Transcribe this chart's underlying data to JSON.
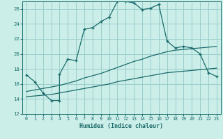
{
  "xlabel": "Humidex (Indice chaleur)",
  "background_color": "#cceee8",
  "grid_color": "#99cccc",
  "line_color": "#1a6b6b",
  "xlim": [
    -0.5,
    23.5
  ],
  "ylim": [
    12,
    27
  ],
  "xticks": [
    0,
    1,
    2,
    3,
    4,
    5,
    6,
    7,
    8,
    9,
    10,
    11,
    12,
    13,
    14,
    15,
    16,
    17,
    18,
    19,
    20,
    21,
    22,
    23
  ],
  "yticks": [
    12,
    14,
    16,
    18,
    20,
    22,
    24,
    26
  ],
  "line1_x": [
    0,
    1,
    2,
    3,
    4,
    4,
    5,
    6,
    7,
    8,
    9,
    10,
    11,
    12,
    13,
    14,
    15,
    16,
    17,
    18,
    19,
    20,
    21,
    22,
    23
  ],
  "line1_y": [
    17.2,
    16.3,
    14.8,
    13.8,
    13.8,
    17.3,
    19.3,
    19.1,
    23.3,
    23.5,
    24.3,
    24.9,
    27.0,
    27.0,
    26.8,
    25.9,
    26.1,
    26.6,
    21.7,
    20.8,
    21.0,
    20.8,
    20.0,
    17.5,
    17.0
  ],
  "line2_x": [
    0,
    1,
    2,
    3,
    4,
    5,
    6,
    7,
    8,
    9,
    10,
    11,
    12,
    13,
    14,
    15,
    16,
    17,
    18,
    19,
    20,
    21,
    22,
    23
  ],
  "line2_y": [
    15.0,
    15.2,
    15.4,
    15.6,
    15.8,
    16.1,
    16.4,
    16.8,
    17.1,
    17.4,
    17.8,
    18.2,
    18.6,
    19.0,
    19.3,
    19.7,
    20.0,
    20.3,
    20.5,
    20.6,
    20.7,
    20.8,
    20.9,
    21.0
  ],
  "line3_x": [
    0,
    1,
    2,
    3,
    4,
    5,
    6,
    7,
    8,
    9,
    10,
    11,
    12,
    13,
    14,
    15,
    16,
    17,
    18,
    19,
    20,
    21,
    22,
    23
  ],
  "line3_y": [
    14.3,
    14.4,
    14.5,
    14.6,
    14.8,
    15.0,
    15.2,
    15.4,
    15.6,
    15.8,
    16.0,
    16.3,
    16.5,
    16.7,
    16.9,
    17.1,
    17.3,
    17.5,
    17.6,
    17.7,
    17.8,
    17.9,
    18.0,
    18.1
  ]
}
